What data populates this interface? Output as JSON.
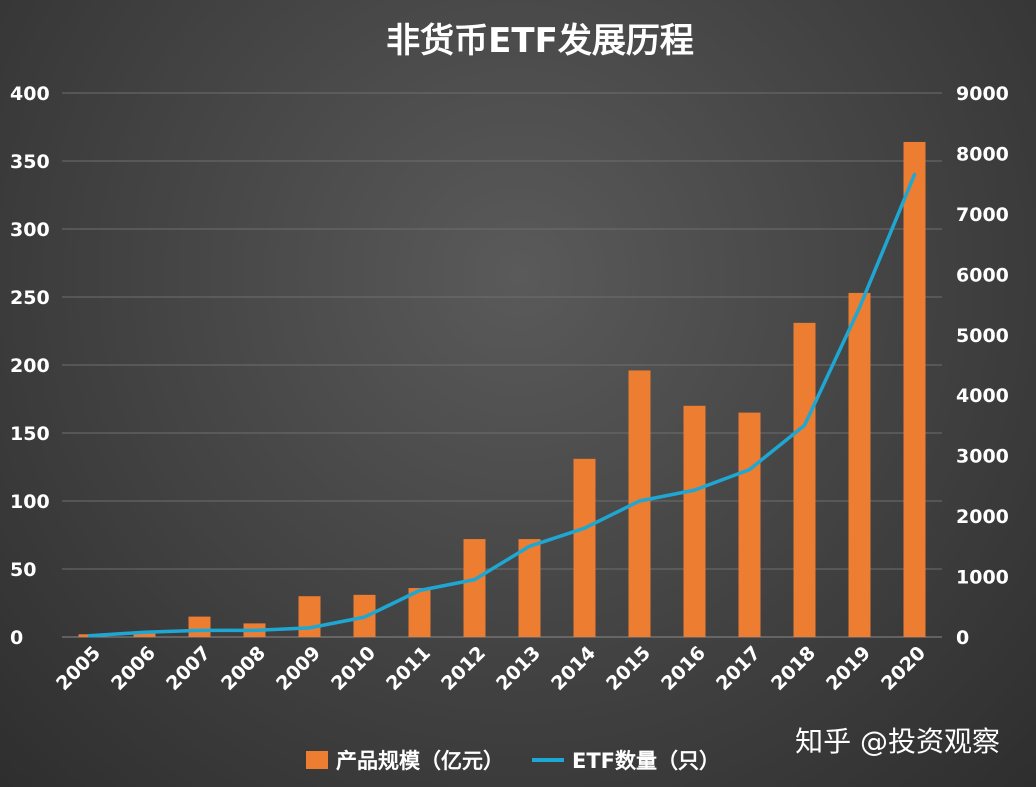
{
  "chart_data": {
    "type": "bar",
    "title": "非货币ETF发展历程",
    "categories": [
      "2005",
      "2006",
      "2007",
      "2008",
      "2009",
      "2010",
      "2011",
      "2012",
      "2013",
      "2014",
      "2015",
      "2016",
      "2017",
      "2018",
      "2019",
      "2020"
    ],
    "series": [
      {
        "name": "产品规模（亿元）",
        "type": "bar",
        "axis": "left",
        "color": "#ED7D31",
        "values": [
          2,
          4,
          15,
          10,
          30,
          31,
          36,
          72,
          72,
          131,
          196,
          170,
          165,
          231,
          253,
          364
        ]
      },
      {
        "name": "ETF数量（只）",
        "type": "line",
        "axis": "right",
        "color": "#1EA7D2",
        "values": [
          20,
          80,
          110,
          110,
          150,
          330,
          770,
          950,
          1500,
          1800,
          2250,
          2430,
          2770,
          3500,
          5450,
          7650
        ]
      }
    ],
    "y_left": {
      "min": 0,
      "max": 400,
      "ticks": [
        "400",
        "350",
        "300",
        "250",
        "200",
        "150",
        "100",
        "50",
        "0"
      ]
    },
    "y_right": {
      "min": 0,
      "max": 9000,
      "ticks": [
        "9000",
        "8000",
        "7000",
        "6000",
        "5000",
        "4000",
        "3000",
        "2000",
        "1000",
        "0"
      ]
    },
    "grid": true,
    "legend_position": "bottom"
  },
  "watermark": "知乎 @投资观察"
}
